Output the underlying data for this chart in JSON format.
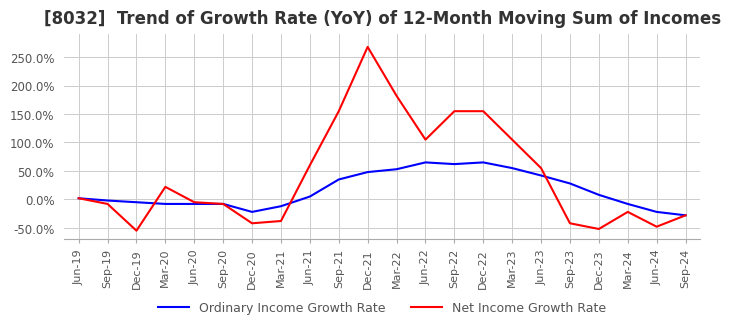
{
  "title": "[8032]  Trend of Growth Rate (YoY) of 12-Month Moving Sum of Incomes",
  "title_fontsize": 12,
  "ylim": [
    -0.7,
    2.9
  ],
  "yticks": [
    -0.5,
    0.0,
    0.5,
    1.0,
    1.5,
    2.0,
    2.5
  ],
  "ytick_labels": [
    "-50.0%",
    "0.0%",
    "50.0%",
    "100.0%",
    "150.0%",
    "200.0%",
    "250.0%"
  ],
  "ordinary_color": "#0000FF",
  "net_color": "#FF0000",
  "legend_labels": [
    "Ordinary Income Growth Rate",
    "Net Income Growth Rate"
  ],
  "x_labels": [
    "Jun-19",
    "Sep-19",
    "Dec-19",
    "Mar-20",
    "Jun-20",
    "Sep-20",
    "Dec-20",
    "Mar-21",
    "Jun-21",
    "Sep-21",
    "Dec-21",
    "Mar-22",
    "Jun-22",
    "Sep-22",
    "Dec-22",
    "Mar-23",
    "Jun-23",
    "Sep-23",
    "Dec-23",
    "Mar-24",
    "Jun-24",
    "Sep-24"
  ],
  "ordinary": [
    0.02,
    -0.02,
    -0.05,
    -0.08,
    -0.08,
    -0.08,
    -0.22,
    -0.12,
    0.05,
    0.35,
    0.48,
    0.53,
    0.65,
    0.62,
    0.65,
    0.55,
    0.42,
    0.28,
    0.08,
    -0.08,
    -0.22,
    -0.28
  ],
  "net": [
    0.02,
    -0.08,
    -0.55,
    0.22,
    -0.05,
    -0.08,
    -0.42,
    -0.38,
    0.6,
    1.55,
    2.68,
    1.82,
    1.05,
    1.55,
    1.55,
    1.05,
    0.55,
    -0.42,
    -0.52,
    -0.22,
    -0.48,
    -0.28
  ],
  "grid_color": "#cccccc",
  "spine_color": "#aaaaaa",
  "tick_label_color": "#555555",
  "title_color": "#333333",
  "background_color": "#ffffff"
}
